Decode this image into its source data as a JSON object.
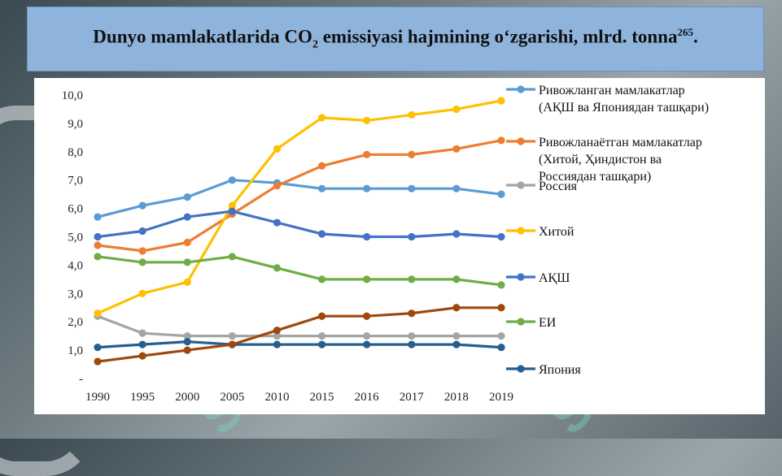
{
  "title": {
    "prefix": "Dunyo mamlakatlarida CO",
    "subscript": "2",
    "suffix": " emissiyasi hajmining oʻzgarishi, mlrd. tonna",
    "footnote": "265",
    "end": "."
  },
  "watermark": {
    "text": "SOFF"
  },
  "colors": {
    "title_bg": "#8fb4dc",
    "series": [
      "#5b9bd5",
      "#ed7d31",
      "#a5a5a5",
      "#ffc000",
      "#4472c4",
      "#70ad47",
      "#255e91",
      "#9e480e"
    ]
  },
  "chart_data": {
    "type": "line",
    "title": "",
    "xlabel": "",
    "ylabel": "",
    "categories": [
      "1990",
      "1995",
      "2000",
      "2005",
      "2010",
      "2015",
      "2016",
      "2017",
      "2018",
      "2019"
    ],
    "ylim": [
      0,
      10
    ],
    "yticks": [
      {
        "value": 0,
        "label": "-"
      },
      {
        "value": 1,
        "label": "1,0"
      },
      {
        "value": 2,
        "label": "2,0"
      },
      {
        "value": 3,
        "label": "3,0"
      },
      {
        "value": 4,
        "label": "4,0"
      },
      {
        "value": 5,
        "label": "5,0"
      },
      {
        "value": 6,
        "label": "6,0"
      },
      {
        "value": 7,
        "label": "7,0"
      },
      {
        "value": 8,
        "label": "8,0"
      },
      {
        "value": 9,
        "label": "9,0"
      },
      {
        "value": 10,
        "label": "10,0"
      }
    ],
    "grid": false,
    "legend_position": "right",
    "series": [
      {
        "name": "Ривожланган мамлакатлар (АҚШ ва Япониядан ташқари)",
        "color": "#5b9bd5",
        "values": [
          5.7,
          6.1,
          6.4,
          7.0,
          6.9,
          6.7,
          6.7,
          6.7,
          6.7,
          6.5
        ]
      },
      {
        "name": "Ривожланаётган мамлакатлар (Хитой, Ҳиндистон ва Россиядан ташқари)",
        "color": "#ed7d31",
        "values": [
          4.7,
          4.5,
          4.8,
          5.8,
          6.8,
          7.5,
          7.9,
          7.9,
          8.1,
          8.4
        ]
      },
      {
        "name": "Россия",
        "color": "#a5a5a5",
        "values": [
          2.2,
          1.6,
          1.5,
          1.5,
          1.5,
          1.5,
          1.5,
          1.5,
          1.5,
          1.5
        ]
      },
      {
        "name": "Хитой",
        "color": "#ffc000",
        "values": [
          2.3,
          3.0,
          3.4,
          6.1,
          8.1,
          9.2,
          9.1,
          9.3,
          9.5,
          9.8
        ]
      },
      {
        "name": "АҚШ",
        "color": "#4472c4",
        "values": [
          5.0,
          5.2,
          5.7,
          5.9,
          5.5,
          5.1,
          5.0,
          5.0,
          5.1,
          5.0
        ]
      },
      {
        "name": "ЕИ",
        "color": "#70ad47",
        "values": [
          4.3,
          4.1,
          4.1,
          4.3,
          3.9,
          3.5,
          3.5,
          3.5,
          3.5,
          3.3
        ]
      },
      {
        "name": "Япония",
        "color": "#255e91",
        "values": [
          1.1,
          1.2,
          1.3,
          1.2,
          1.2,
          1.2,
          1.2,
          1.2,
          1.2,
          1.1
        ]
      },
      {
        "values": [
          0.6,
          0.8,
          1.0,
          1.2,
          1.7,
          2.2,
          2.2,
          2.3,
          2.5,
          2.5
        ],
        "color": "#9e480e"
      }
    ],
    "legend_order": [
      0,
      1,
      2,
      3,
      4,
      5,
      6
    ]
  }
}
